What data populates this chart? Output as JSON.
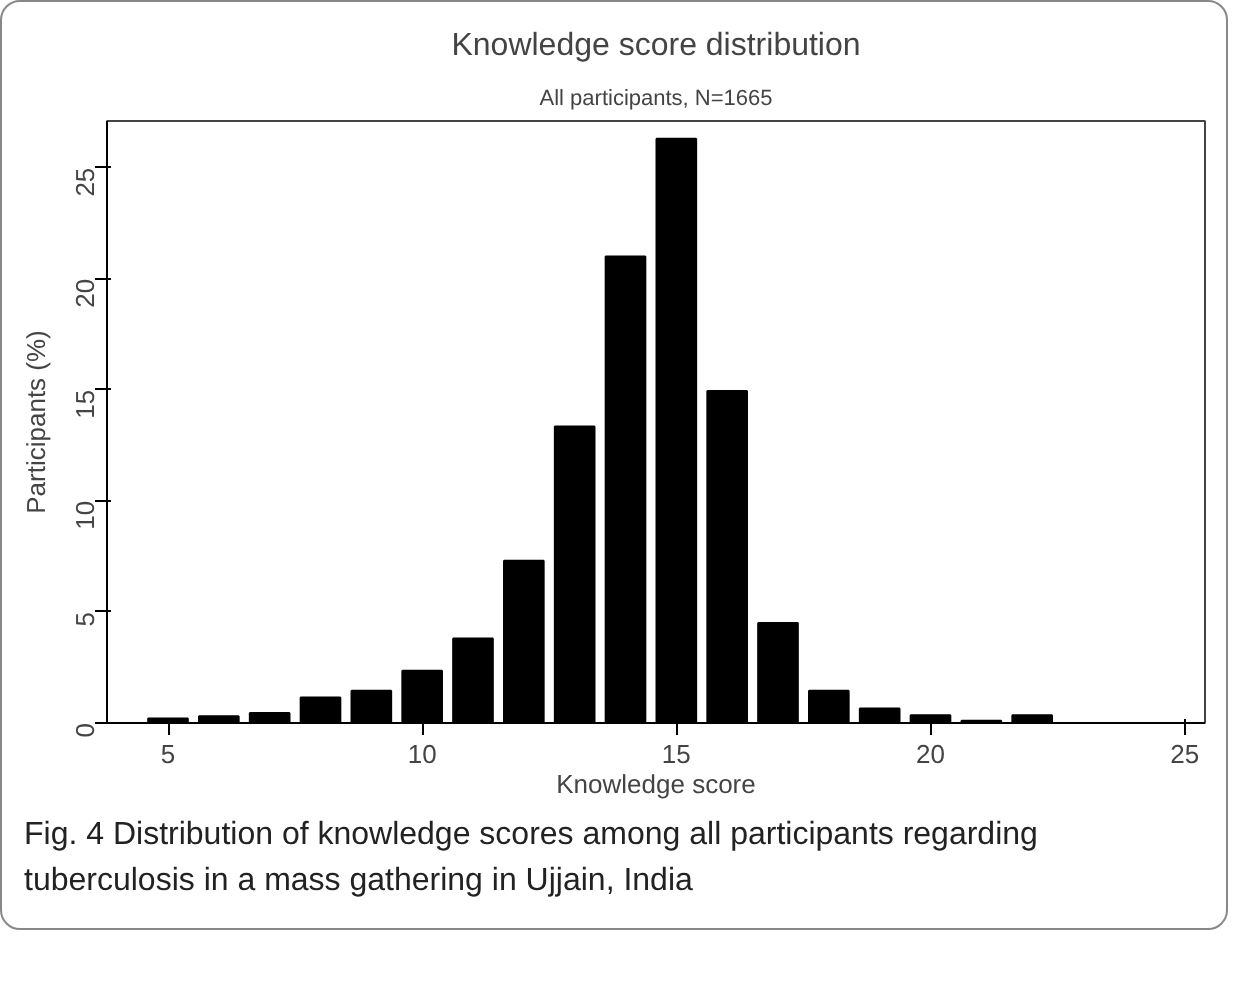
{
  "chart_data": {
    "type": "bar",
    "title": "Knowledge score distribution",
    "subtitle": "All participants, N=1665",
    "xlabel": "Knowledge score",
    "ylabel": "Participants (%)",
    "x": [
      5,
      6,
      7,
      8,
      9,
      10,
      11,
      12,
      13,
      14,
      15,
      16,
      17,
      18,
      19,
      20,
      21,
      22
    ],
    "values": [
      0.2,
      0.3,
      0.45,
      1.15,
      1.45,
      2.35,
      3.8,
      7.3,
      13.35,
      21.0,
      26.3,
      14.95,
      4.5,
      1.45,
      0.65,
      0.35,
      0.1,
      0.35
    ],
    "color": "#000000",
    "xlim": [
      3.8,
      25.4
    ],
    "xticks": [
      5,
      10,
      15,
      20,
      25
    ],
    "ylim": [
      0,
      27.1
    ],
    "yticks": [
      0,
      5,
      10,
      15,
      20,
      25
    ],
    "grid": false,
    "annotations": [
      "Fig. 4 Distribution of knowledge scores among all participants regarding tuberculosis in a mass gathering in Ujjain, India"
    ]
  }
}
